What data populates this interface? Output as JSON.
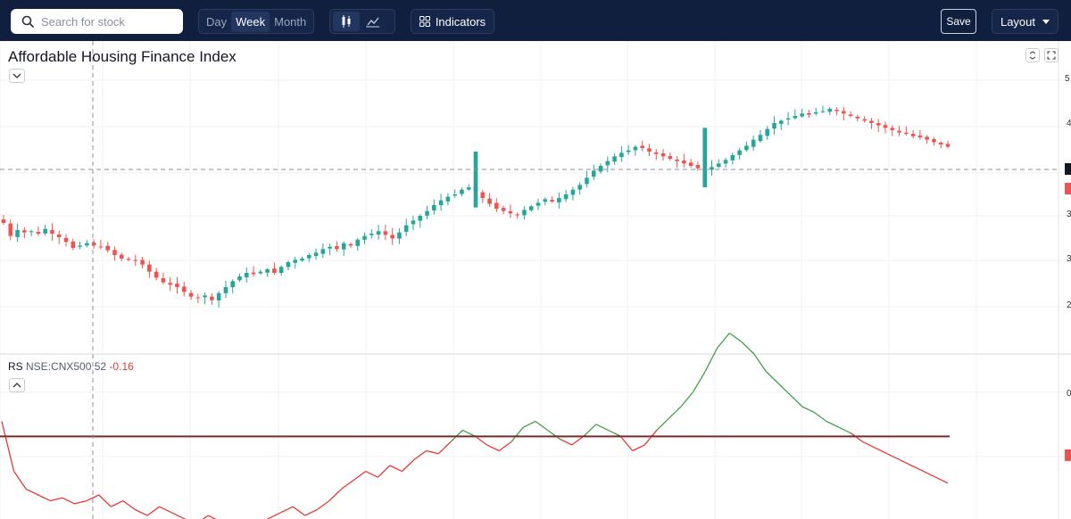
{
  "toolbar": {
    "search_placeholder": "Search for stock",
    "timeframes": [
      "Day",
      "Week",
      "Month"
    ],
    "active_timeframe": "Week",
    "chart_types": [
      "candlestick-icon",
      "line-chart-icon"
    ],
    "active_chart_type": "candlestick-icon",
    "indicators_label": "Indicators",
    "save_label": "Save",
    "layout_label": "Layout"
  },
  "chart": {
    "title": "Affordable Housing Finance Index",
    "rs_name": "RS",
    "rs_symbol": "NSE:CNX500",
    "rs_period": "52",
    "rs_value": "-0.16",
    "right_axis_ticks": [
      "5",
      "4",
      "3",
      "3",
      "2",
      "0"
    ]
  },
  "colors": {
    "up": "#26a69a",
    "down": "#ef5350",
    "rs_up": "#43a047",
    "rs_down": "#e53935",
    "toolbar_bg": "#0f1f3d"
  },
  "chart_data": {
    "type": "candlestick",
    "price_closes": [
      292,
      281,
      286,
      284,
      285,
      283,
      287,
      283,
      280,
      276,
      271,
      273,
      275,
      273,
      272,
      269,
      265,
      262,
      261,
      260,
      257,
      251,
      246,
      242,
      240,
      238,
      234,
      230,
      229,
      231,
      227,
      233,
      238,
      243,
      247,
      250,
      249,
      251,
      253,
      250,
      255,
      259,
      261,
      262,
      265,
      267,
      270,
      272,
      270,
      275,
      273,
      278,
      281,
      283,
      285,
      282,
      279,
      284,
      290,
      294,
      298,
      302,
      307,
      311,
      314,
      316,
      320,
      322,
      318,
      313,
      308,
      304,
      302,
      300,
      299,
      303,
      306,
      309,
      312,
      310,
      313,
      316,
      320,
      324,
      330,
      336,
      340,
      344,
      348,
      351,
      353,
      356,
      355,
      352,
      350,
      348,
      346,
      344,
      342,
      340,
      338,
      337,
      339,
      342,
      345,
      349,
      353,
      357,
      362,
      366,
      371,
      376,
      378,
      380,
      382,
      384,
      383,
      385,
      386,
      388,
      386,
      384,
      382,
      380,
      378,
      376,
      374,
      372,
      370,
      368,
      367,
      365,
      364,
      362,
      360,
      358,
      356
    ],
    "rs_values": [
      0.05,
      -0.12,
      -0.18,
      -0.2,
      -0.22,
      -0.21,
      -0.23,
      -0.22,
      -0.2,
      -0.24,
      -0.22,
      -0.25,
      -0.27,
      -0.24,
      -0.26,
      -0.28,
      -0.3,
      -0.27,
      -0.29,
      -0.31,
      -0.33,
      -0.3,
      -0.28,
      -0.26,
      -0.24,
      -0.27,
      -0.25,
      -0.22,
      -0.18,
      -0.15,
      -0.12,
      -0.14,
      -0.1,
      -0.12,
      -0.08,
      -0.05,
      -0.06,
      -0.02,
      0.02,
      0.0,
      -0.03,
      -0.05,
      -0.02,
      0.03,
      0.05,
      0.02,
      -0.01,
      -0.03,
      0.0,
      0.04,
      0.02,
      0.0,
      -0.05,
      -0.03,
      0.02,
      0.06,
      0.1,
      0.15,
      0.22,
      0.3,
      0.35,
      0.32,
      0.28,
      0.22,
      0.18,
      0.14,
      0.1,
      0.08,
      0.05,
      0.03,
      0.01,
      -0.02,
      -0.04,
      -0.06,
      -0.08,
      -0.1,
      -0.12,
      -0.14,
      -0.16
    ]
  }
}
